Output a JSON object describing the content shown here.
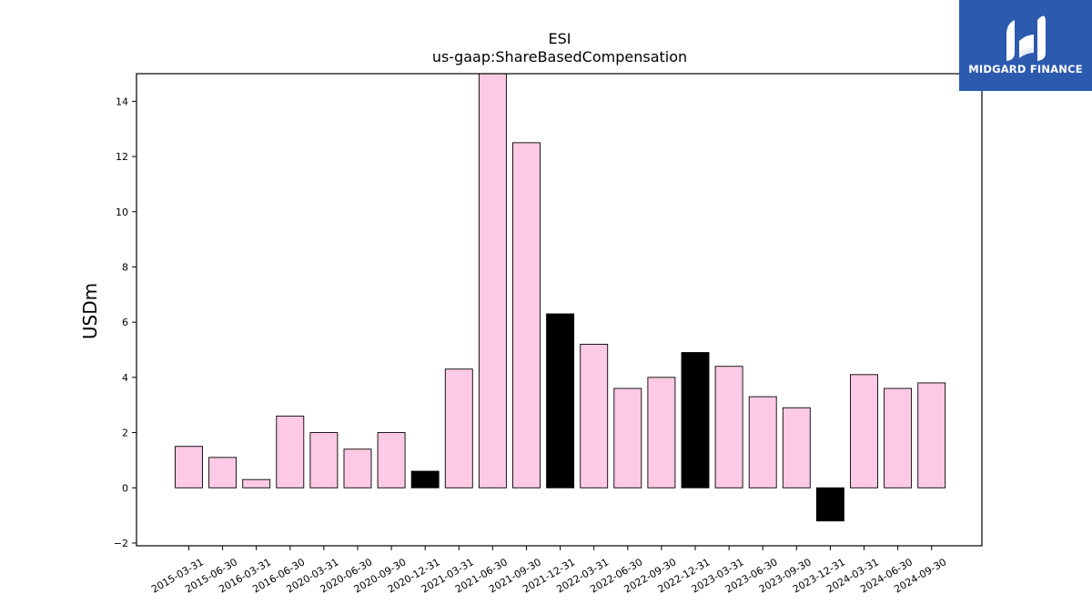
{
  "chart_data": {
    "type": "bar",
    "title": "ESI",
    "subtitle": "us-gaap:ShareBasedCompensation",
    "ylabel": "USDm",
    "xlabel": "",
    "ylim": [
      -2.1,
      15
    ],
    "yticks": [
      -2,
      0,
      2,
      4,
      6,
      8,
      10,
      12,
      14
    ],
    "ytick_labels": [
      "−2",
      "0",
      "2",
      "4",
      "6",
      "8",
      "10",
      "12",
      "14"
    ],
    "grid": false,
    "categories": [
      "2015-03-31",
      "2015-06-30",
      "2016-03-31",
      "2016-06-30",
      "2020-03-31",
      "2020-06-30",
      "2020-09-30",
      "2020-12-31",
      "2021-03-31",
      "2021-06-30",
      "2021-09-30",
      "2021-12-31",
      "2022-03-31",
      "2022-06-30",
      "2022-09-30",
      "2022-12-31",
      "2023-03-31",
      "2023-06-30",
      "2023-09-30",
      "2023-12-31",
      "2024-03-31",
      "2024-06-30",
      "2024-09-30"
    ],
    "values": [
      1.5,
      1.1,
      0.3,
      2.6,
      2.0,
      1.4,
      2.0,
      0.6,
      4.3,
      15.2,
      12.5,
      6.3,
      5.2,
      3.6,
      4.0,
      4.9,
      4.4,
      3.3,
      2.9,
      -1.2,
      4.1,
      3.6,
      3.8
    ],
    "highlight": [
      false,
      false,
      false,
      false,
      false,
      false,
      false,
      true,
      false,
      false,
      false,
      true,
      false,
      false,
      false,
      true,
      false,
      false,
      false,
      true,
      false,
      false,
      false
    ],
    "colors": {
      "bar": "#fccae4",
      "highlight": "#000000",
      "edge": "#000000"
    }
  },
  "logo": {
    "text": "MIDGARD FINANCE",
    "background": "#2b5aae",
    "icon": "midgard-logo-icon"
  }
}
